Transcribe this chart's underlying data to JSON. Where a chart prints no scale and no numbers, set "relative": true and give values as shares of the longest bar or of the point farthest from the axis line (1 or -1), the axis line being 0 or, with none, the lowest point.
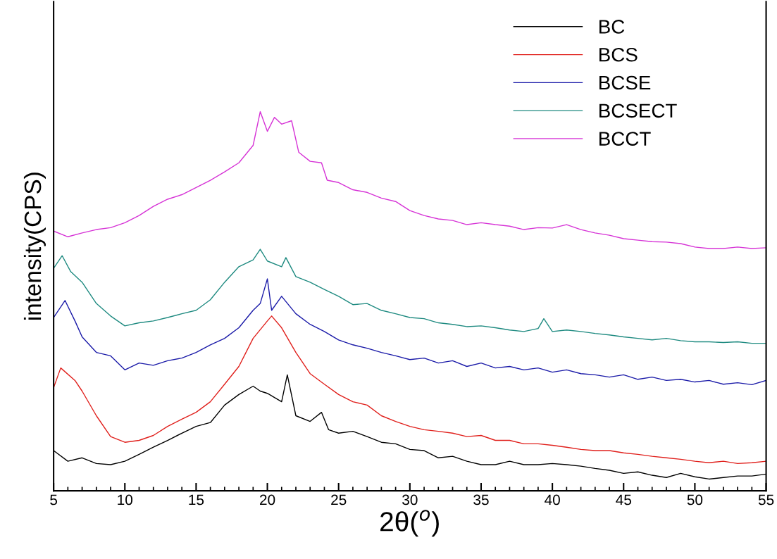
{
  "chart_data": {
    "type": "line",
    "relative": true,
    "xlabel": "2θ($^{o}$)",
    "ylabel": "intensity(CPS)",
    "xlim": [
      5,
      55
    ],
    "xticks": [
      5,
      10,
      15,
      20,
      25,
      30,
      35,
      40,
      45,
      50,
      55
    ],
    "legend": "top right",
    "grid": false,
    "marker": "none",
    "line_style": "solid",
    "series": [
      {
        "name": "BC",
        "color": "#000000",
        "x": [
          5,
          6,
          7,
          8,
          9,
          10,
          11,
          12,
          13,
          14,
          15,
          16,
          17,
          18,
          19,
          19.5,
          20,
          21,
          21.4,
          22,
          23,
          23.8,
          24.3,
          25,
          26,
          27,
          28,
          29,
          30,
          31,
          32,
          33,
          34,
          35,
          36,
          37,
          38,
          39,
          40,
          41,
          42,
          43,
          44,
          45,
          46,
          47,
          48,
          49,
          50,
          51,
          52,
          53,
          54,
          55
        ],
        "values": [
          0.106,
          0.078,
          0.087,
          0.072,
          0.069,
          0.078,
          0.096,
          0.115,
          0.133,
          0.152,
          0.17,
          0.18,
          0.226,
          0.254,
          0.276,
          0.263,
          0.257,
          0.235,
          0.306,
          0.198,
          0.183,
          0.207,
          0.161,
          0.152,
          0.157,
          0.143,
          0.128,
          0.124,
          0.109,
          0.106,
          0.087,
          0.091,
          0.078,
          0.069,
          0.069,
          0.078,
          0.069,
          0.069,
          0.072,
          0.069,
          0.065,
          0.059,
          0.054,
          0.046,
          0.05,
          0.041,
          0.035,
          0.046,
          0.037,
          0.031,
          0.035,
          0.039,
          0.039,
          0.044
        ]
      },
      {
        "name": "BCS",
        "color": "#e0201c",
        "x": [
          5,
          5.5,
          6.5,
          7,
          8,
          9,
          10,
          11,
          12,
          13,
          14,
          15,
          16,
          17,
          18,
          19,
          20,
          20.3,
          21,
          22,
          23,
          24,
          25,
          26,
          27,
          28,
          29,
          30,
          31,
          32,
          33,
          34,
          35,
          36,
          37,
          38,
          39,
          40,
          41,
          42,
          43,
          44,
          45,
          46,
          47,
          48,
          49,
          50,
          51,
          52,
          53,
          54,
          55
        ],
        "values": [
          0.272,
          0.324,
          0.291,
          0.263,
          0.198,
          0.143,
          0.128,
          0.133,
          0.146,
          0.17,
          0.189,
          0.207,
          0.235,
          0.281,
          0.328,
          0.402,
          0.448,
          0.461,
          0.43,
          0.365,
          0.309,
          0.281,
          0.254,
          0.235,
          0.226,
          0.198,
          0.183,
          0.17,
          0.161,
          0.157,
          0.152,
          0.143,
          0.146,
          0.133,
          0.133,
          0.124,
          0.124,
          0.12,
          0.115,
          0.109,
          0.106,
          0.106,
          0.1,
          0.096,
          0.091,
          0.087,
          0.083,
          0.078,
          0.074,
          0.078,
          0.072,
          0.074,
          0.078
        ]
      },
      {
        "name": "BCSE",
        "color": "#1a1aa8",
        "x": [
          5,
          5.8,
          6.5,
          7,
          8,
          9,
          10,
          11,
          12,
          13,
          14,
          15,
          16,
          17,
          18,
          19,
          19.5,
          20,
          20.3,
          21,
          22,
          23,
          24,
          25,
          26,
          27,
          28,
          29,
          30,
          31,
          32,
          33,
          34,
          35,
          36,
          37,
          38,
          39,
          40,
          41,
          42,
          43,
          44,
          45,
          46,
          47,
          48,
          49,
          50,
          51,
          52,
          53,
          54,
          55
        ],
        "values": [
          0.457,
          0.502,
          0.448,
          0.406,
          0.365,
          0.356,
          0.319,
          0.337,
          0.331,
          0.343,
          0.35,
          0.365,
          0.385,
          0.402,
          0.43,
          0.476,
          0.494,
          0.559,
          0.476,
          0.513,
          0.467,
          0.439,
          0.42,
          0.398,
          0.385,
          0.376,
          0.365,
          0.356,
          0.346,
          0.35,
          0.337,
          0.343,
          0.328,
          0.337,
          0.324,
          0.328,
          0.319,
          0.324,
          0.313,
          0.319,
          0.309,
          0.306,
          0.3,
          0.306,
          0.294,
          0.3,
          0.291,
          0.294,
          0.287,
          0.291,
          0.281,
          0.285,
          0.28,
          0.291
        ]
      },
      {
        "name": "BCSECT",
        "color": "#1e8a80",
        "x": [
          5,
          5.6,
          6.2,
          7,
          8,
          9,
          10,
          11,
          12,
          13,
          14,
          15,
          16,
          17,
          18,
          19,
          19.5,
          20,
          21,
          21.3,
          22,
          23,
          24,
          25,
          26,
          27,
          28,
          29,
          30,
          31,
          32,
          33,
          34,
          35,
          36,
          37,
          38,
          39,
          39.4,
          40,
          41,
          42,
          43,
          44,
          45,
          46,
          47,
          48,
          49,
          50,
          51,
          52,
          53,
          54,
          55
        ],
        "values": [
          0.587,
          0.62,
          0.578,
          0.55,
          0.494,
          0.461,
          0.435,
          0.443,
          0.448,
          0.457,
          0.467,
          0.476,
          0.504,
          0.55,
          0.591,
          0.609,
          0.637,
          0.606,
          0.591,
          0.615,
          0.565,
          0.55,
          0.531,
          0.513,
          0.491,
          0.494,
          0.476,
          0.467,
          0.457,
          0.454,
          0.443,
          0.439,
          0.433,
          0.435,
          0.43,
          0.424,
          0.42,
          0.428,
          0.454,
          0.42,
          0.424,
          0.42,
          0.415,
          0.411,
          0.406,
          0.402,
          0.398,
          0.402,
          0.396,
          0.393,
          0.393,
          0.391,
          0.393,
          0.389,
          0.389
        ]
      },
      {
        "name": "BCCT",
        "color": "#d633d6",
        "x": [
          5,
          6,
          7,
          8,
          9,
          10,
          11,
          12,
          13,
          14,
          15,
          16,
          17,
          18,
          19,
          19.5,
          20,
          20.5,
          21,
          21.7,
          22.2,
          23,
          23.8,
          24.2,
          25,
          26,
          27,
          28,
          29,
          30,
          31,
          32,
          33,
          34,
          35,
          36,
          37,
          38,
          39,
          40,
          41,
          42,
          43,
          44,
          45,
          46,
          47,
          48,
          49,
          50,
          51,
          52,
          53,
          54,
          55
        ],
        "values": [
          0.685,
          0.67,
          0.68,
          0.689,
          0.694,
          0.707,
          0.726,
          0.75,
          0.769,
          0.781,
          0.8,
          0.819,
          0.841,
          0.865,
          0.911,
          1.0,
          0.948,
          0.985,
          0.967,
          0.976,
          0.893,
          0.869,
          0.865,
          0.819,
          0.813,
          0.794,
          0.787,
          0.772,
          0.763,
          0.739,
          0.726,
          0.717,
          0.713,
          0.702,
          0.707,
          0.702,
          0.698,
          0.689,
          0.694,
          0.693,
          0.702,
          0.689,
          0.68,
          0.674,
          0.665,
          0.661,
          0.657,
          0.656,
          0.652,
          0.643,
          0.639,
          0.639,
          0.643,
          0.639,
          0.641
        ]
      }
    ]
  }
}
